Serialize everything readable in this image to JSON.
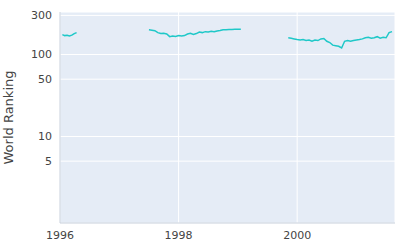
{
  "chart_data": {
    "type": "line",
    "y_label": "World Ranking",
    "log": "y",
    "grid": true,
    "color": "#1fc8c8",
    "xlim": [
      1996,
      2001.65
    ],
    "xticks": [
      1996,
      1998,
      2000
    ],
    "ylim": [
      0.88,
      330
    ],
    "yticks": [
      5,
      10,
      50,
      100,
      300
    ],
    "x": [
      1996.04,
      1996.08,
      1996.12,
      1996.16,
      1996.2,
      1996.24,
      1996.28,
      1996.6,
      1997.5,
      1997.55,
      1997.6,
      1997.65,
      1997.7,
      1997.75,
      1997.8,
      1997.85,
      1997.9,
      1997.95,
      1998.0,
      1998.05,
      1998.1,
      1998.15,
      1998.2,
      1998.25,
      1998.3,
      1998.35,
      1998.4,
      1998.45,
      1998.5,
      1998.55,
      1998.6,
      1998.65,
      1998.7,
      1998.75,
      1998.8,
      1998.85,
      1998.9,
      1998.95,
      1999.0,
      1999.05,
      1999.5,
      1999.85,
      1999.9,
      1999.95,
      2000.0,
      2000.05,
      2000.1,
      2000.15,
      2000.2,
      2000.25,
      2000.3,
      2000.35,
      2000.4,
      2000.45,
      2000.5,
      2000.55,
      2000.6,
      2000.65,
      2000.7,
      2000.75,
      2000.8,
      2000.85,
      2000.9,
      2000.95,
      2001.0,
      2001.05,
      2001.1,
      2001.15,
      2001.2,
      2001.25,
      2001.3,
      2001.35,
      2001.4,
      2001.45,
      2001.5,
      2001.55,
      2001.6
    ],
    "values": [
      175,
      170,
      172,
      168,
      172,
      180,
      185,
      null,
      200,
      198,
      195,
      185,
      180,
      182,
      178,
      165,
      168,
      166,
      170,
      168,
      170,
      178,
      182,
      176,
      180,
      188,
      185,
      190,
      188,
      192,
      190,
      194,
      196,
      200,
      201,
      202,
      202,
      203,
      203,
      203,
      null,
      160,
      158,
      155,
      152,
      150,
      152,
      148,
      150,
      145,
      150,
      148,
      155,
      157,
      145,
      140,
      130,
      128,
      126,
      120,
      145,
      148,
      145,
      148,
      150,
      152,
      155,
      160,
      162,
      158,
      160,
      165,
      158,
      162,
      160,
      185,
      190
    ]
  }
}
